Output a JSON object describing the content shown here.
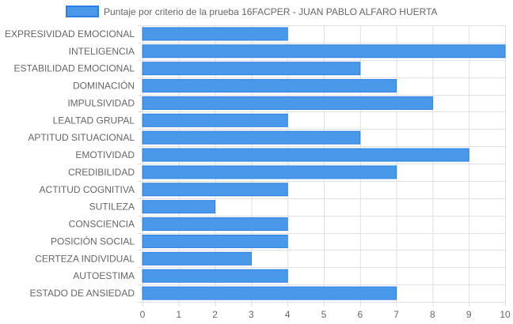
{
  "chart_data": {
    "type": "bar",
    "orientation": "horizontal",
    "categories": [
      "EXPRESIVIDAD EMOCIONAL",
      "INTELIGENCIA",
      "ESTABILIDAD EMOCIONAL",
      "DOMINACIÓN",
      "IMPULSIVIDAD",
      "LEALTAD GRUPAL",
      "APTITUD SITUACIONAL",
      "EMOTIVIDAD",
      "CREDIBILIDAD",
      "ACTITUD COGNITIVA",
      "SUTILEZA",
      "CONSCIENCIA",
      "POSICIÓN SOCIAL",
      "CERTEZA INDIVIDUAL",
      "AUTOESTIMA",
      "ESTADO DE ANSIEDAD"
    ],
    "series": [
      {
        "name": "Puntaje por criterio de la prueba 16FACPER - JUAN PABLO ALFARO HUERTA",
        "values": [
          4,
          10,
          6,
          7,
          8,
          4,
          6,
          9,
          7,
          4,
          2,
          4,
          4,
          3,
          4,
          7
        ],
        "color": "#4a98ea",
        "border_color": "#2c7fe0"
      }
    ],
    "xlim": [
      0,
      10
    ],
    "x_ticks": [
      "0",
      "1",
      "2",
      "3",
      "4",
      "5",
      "6",
      "7",
      "8",
      "9",
      "10"
    ],
    "grid": true,
    "legend_position": "top"
  },
  "colors": {
    "grid": "#e0e0e0",
    "axis_text": "#666666"
  }
}
